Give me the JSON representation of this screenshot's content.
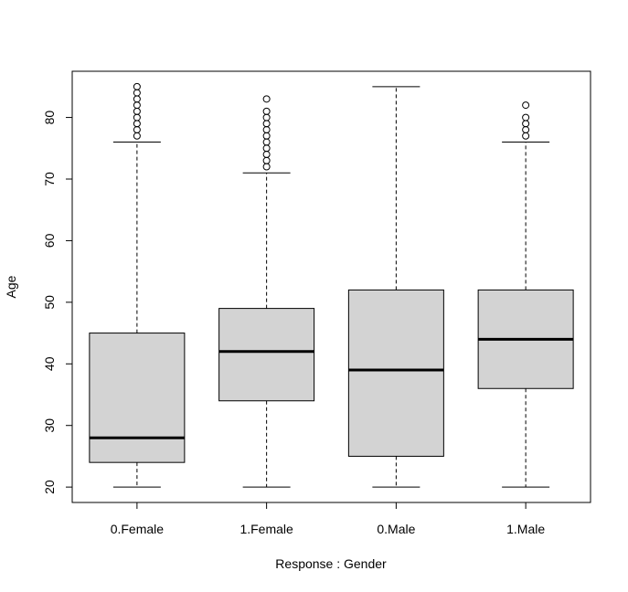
{
  "chart_data": {
    "type": "boxplot",
    "title": "",
    "xlabel": "Response : Gender",
    "ylabel": "Age",
    "ylim": [
      17.5,
      87.5
    ],
    "yticks": [
      20,
      30,
      40,
      50,
      60,
      70,
      80
    ],
    "grid": false,
    "categories": [
      "0.Female",
      "1.Female",
      "0.Male",
      "1.Male"
    ],
    "boxes": [
      {
        "category": "0.Female",
        "whisker_low": 20,
        "q1": 24,
        "median": 28,
        "q3": 45,
        "whisker_high": 76,
        "outliers": [
          77,
          78,
          79,
          80,
          81,
          82,
          83,
          84,
          85
        ]
      },
      {
        "category": "1.Female",
        "whisker_low": 20,
        "q1": 34,
        "median": 42,
        "q3": 49,
        "whisker_high": 71,
        "outliers": [
          72,
          73,
          74,
          75,
          76,
          77,
          78,
          79,
          80,
          81,
          83
        ]
      },
      {
        "category": "0.Male",
        "whisker_low": 20,
        "q1": 25,
        "median": 39,
        "q3": 52,
        "whisker_high": 85,
        "outliers": []
      },
      {
        "category": "1.Male",
        "whisker_low": 20,
        "q1": 36,
        "median": 44,
        "q3": 52,
        "whisker_high": 76,
        "outliers": [
          77,
          78,
          79,
          80,
          82
        ]
      }
    ],
    "colors": {
      "box_fill": "#d3d3d3",
      "stroke": "#000000"
    }
  }
}
